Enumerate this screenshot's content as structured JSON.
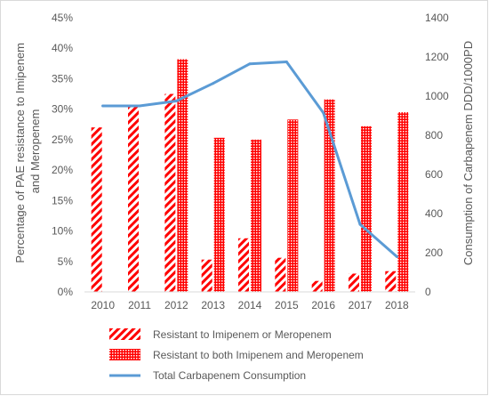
{
  "chart_data": {
    "type": "bar",
    "title": "",
    "categories": [
      "2010",
      "2011",
      "2012",
      "2013",
      "2014",
      "2015",
      "2016",
      "2017",
      "2018"
    ],
    "series": [
      {
        "name": "Resistant to Imipenem or Meropenem",
        "type": "bar",
        "axis": "left",
        "pattern": "diagonal-stripes",
        "color": "#ff0000",
        "values": [
          27.0,
          30.5,
          32.5,
          5.3,
          8.8,
          5.6,
          1.8,
          3.0,
          3.4
        ]
      },
      {
        "name": "Resistant to both Imipenem and Meropenem",
        "type": "bar",
        "axis": "left",
        "pattern": "dotted-grid",
        "color": "#ff0000",
        "values": [
          null,
          null,
          38.2,
          25.3,
          25.0,
          28.3,
          31.6,
          27.2,
          29.5
        ]
      },
      {
        "name": "Total Carbapenem Consumption",
        "type": "line",
        "axis": "right",
        "color": "#5b9bd5",
        "values": [
          950,
          950,
          975,
          1065,
          1165,
          1175,
          915,
          345,
          180
        ]
      }
    ],
    "y_left": {
      "label": "Percentage of PAE resistance to Imipenem and Meropenem",
      "range": [
        0,
        45
      ],
      "ticks": [
        "0%",
        "5%",
        "10%",
        "15%",
        "20%",
        "25%",
        "30%",
        "35%",
        "40%",
        "45%"
      ]
    },
    "y_right": {
      "label": "Consumption of Carbapenem DDD/1000PD",
      "range": [
        0,
        1400
      ],
      "ticks": [
        "0",
        "200",
        "400",
        "600",
        "800",
        "1000",
        "1200",
        "1400"
      ]
    },
    "grid": false,
    "legend_position": "bottom"
  }
}
